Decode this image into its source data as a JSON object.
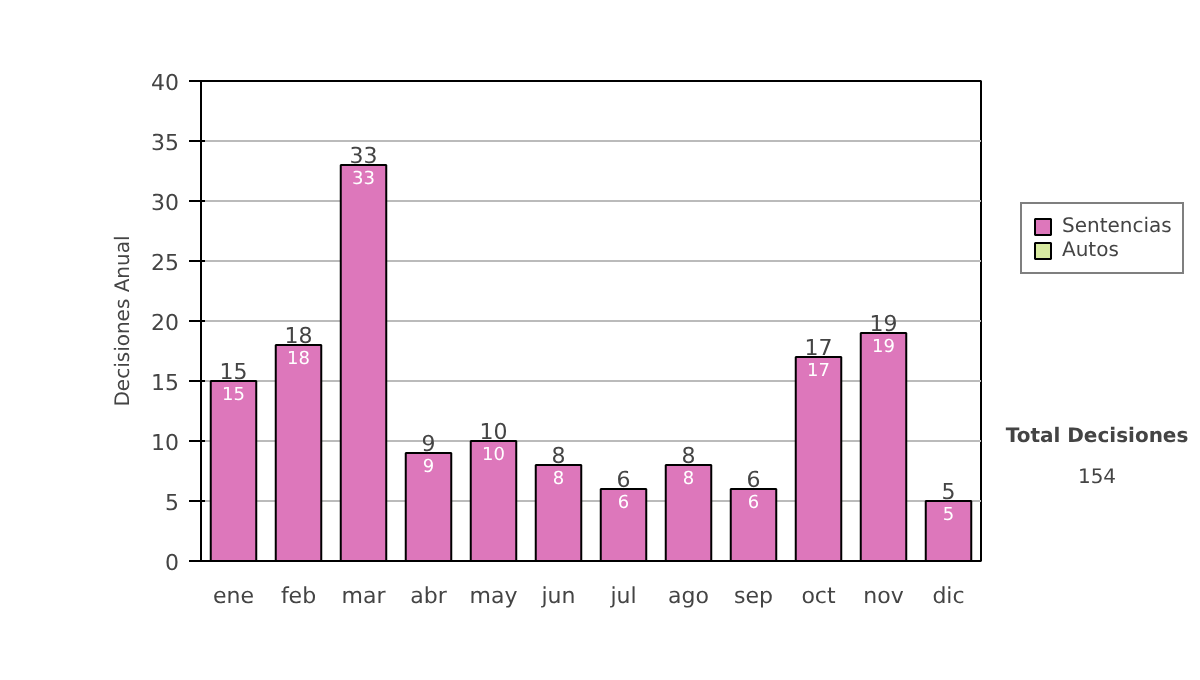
{
  "chart_data": {
    "type": "bar",
    "ylabel": "Decisiones Anual",
    "categories": [
      "ene",
      "feb",
      "mar",
      "abr",
      "may",
      "jun",
      "jul",
      "ago",
      "sep",
      "oct",
      "nov",
      "dic"
    ],
    "series": [
      {
        "name": "Sentencias",
        "color": "#dd77bb",
        "values": [
          15,
          18,
          33,
          9,
          10,
          8,
          6,
          8,
          6,
          17,
          19,
          5
        ],
        "value_labels": [
          "15",
          "18",
          "33",
          "9",
          "10",
          "8",
          "6",
          "8",
          "6",
          "17",
          "19",
          "5"
        ]
      },
      {
        "name": "Autos",
        "color": "#d8eaa0",
        "values": [
          null,
          null,
          null,
          null,
          null,
          null,
          null,
          null,
          null,
          null,
          null,
          null
        ]
      }
    ],
    "stacked": true,
    "totals": [
      "15",
      "18",
      "33",
      "9",
      "10",
      "8",
      "6",
      "8",
      "6",
      "17",
      "19",
      "5"
    ],
    "ylim": [
      0,
      40
    ],
    "yticks": [
      0,
      5,
      10,
      15,
      20,
      25,
      30,
      35,
      40
    ],
    "grid": "y",
    "legend": "right",
    "annotations": [
      "Total Decisiones",
      "154"
    ]
  }
}
